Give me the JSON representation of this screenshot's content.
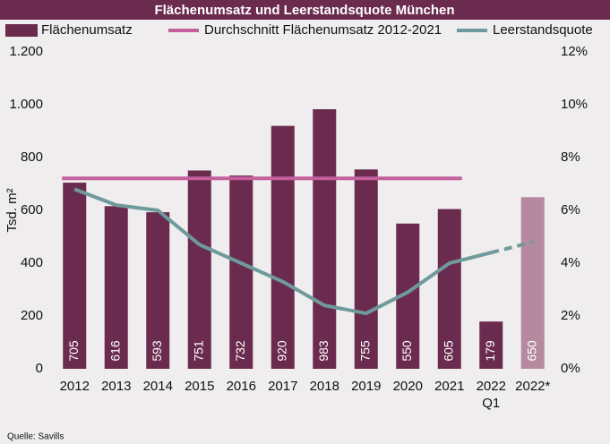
{
  "chart_data": {
    "type": "bar",
    "title": "Flächenumsatz und Leerstandsquote München",
    "categories": [
      "2012",
      "2013",
      "2014",
      "2015",
      "2016",
      "2017",
      "2018",
      "2019",
      "2020",
      "2021",
      [
        "2022",
        "Q1"
      ],
      "2022*"
    ],
    "series": [
      {
        "name": "Flächenumsatz",
        "type": "bar",
        "color": "#6b2b4f",
        "colors": [
          "#6b2b4f",
          "#6b2b4f",
          "#6b2b4f",
          "#6b2b4f",
          "#6b2b4f",
          "#6b2b4f",
          "#6b2b4f",
          "#6b2b4f",
          "#6b2b4f",
          "#6b2b4f",
          "#6b2b4f",
          "#b58a9f"
        ],
        "values": [
          705,
          616,
          593,
          751,
          732,
          920,
          983,
          755,
          550,
          605,
          179,
          650
        ]
      },
      {
        "name": "Durchschnitt Flächenumsatz 2012-2021",
        "type": "hline",
        "color": "#c4609d",
        "value": 721,
        "from": 0,
        "to": 9
      },
      {
        "name": "Leerstandsquote",
        "type": "line",
        "color": "#6f9a9c",
        "axis": "y2",
        "dashed_from": 10,
        "values": [
          6.8,
          6.2,
          6.0,
          4.7,
          4.0,
          3.3,
          2.4,
          2.1,
          2.9,
          4.0,
          4.4,
          4.8
        ]
      }
    ],
    "ylabel": "Tsd. m²",
    "ylim": [
      0,
      1200
    ],
    "yticks": [
      0,
      200,
      400,
      600,
      800,
      {
        "value": 1000,
        "label": "1.000"
      },
      {
        "value": 1200,
        "label": "1.200"
      }
    ],
    "y2lim": [
      0,
      12
    ],
    "y2ticks": [
      {
        "value": 0,
        "label": "0%"
      },
      {
        "value": 2,
        "label": "2%"
      },
      {
        "value": 4,
        "label": "4%"
      },
      {
        "value": 6,
        "label": "6%"
      },
      {
        "value": 8,
        "label": "8%"
      },
      {
        "value": 10,
        "label": "10%"
      },
      {
        "value": 12,
        "label": "12%"
      }
    ],
    "source": "Quelle: Savills"
  }
}
